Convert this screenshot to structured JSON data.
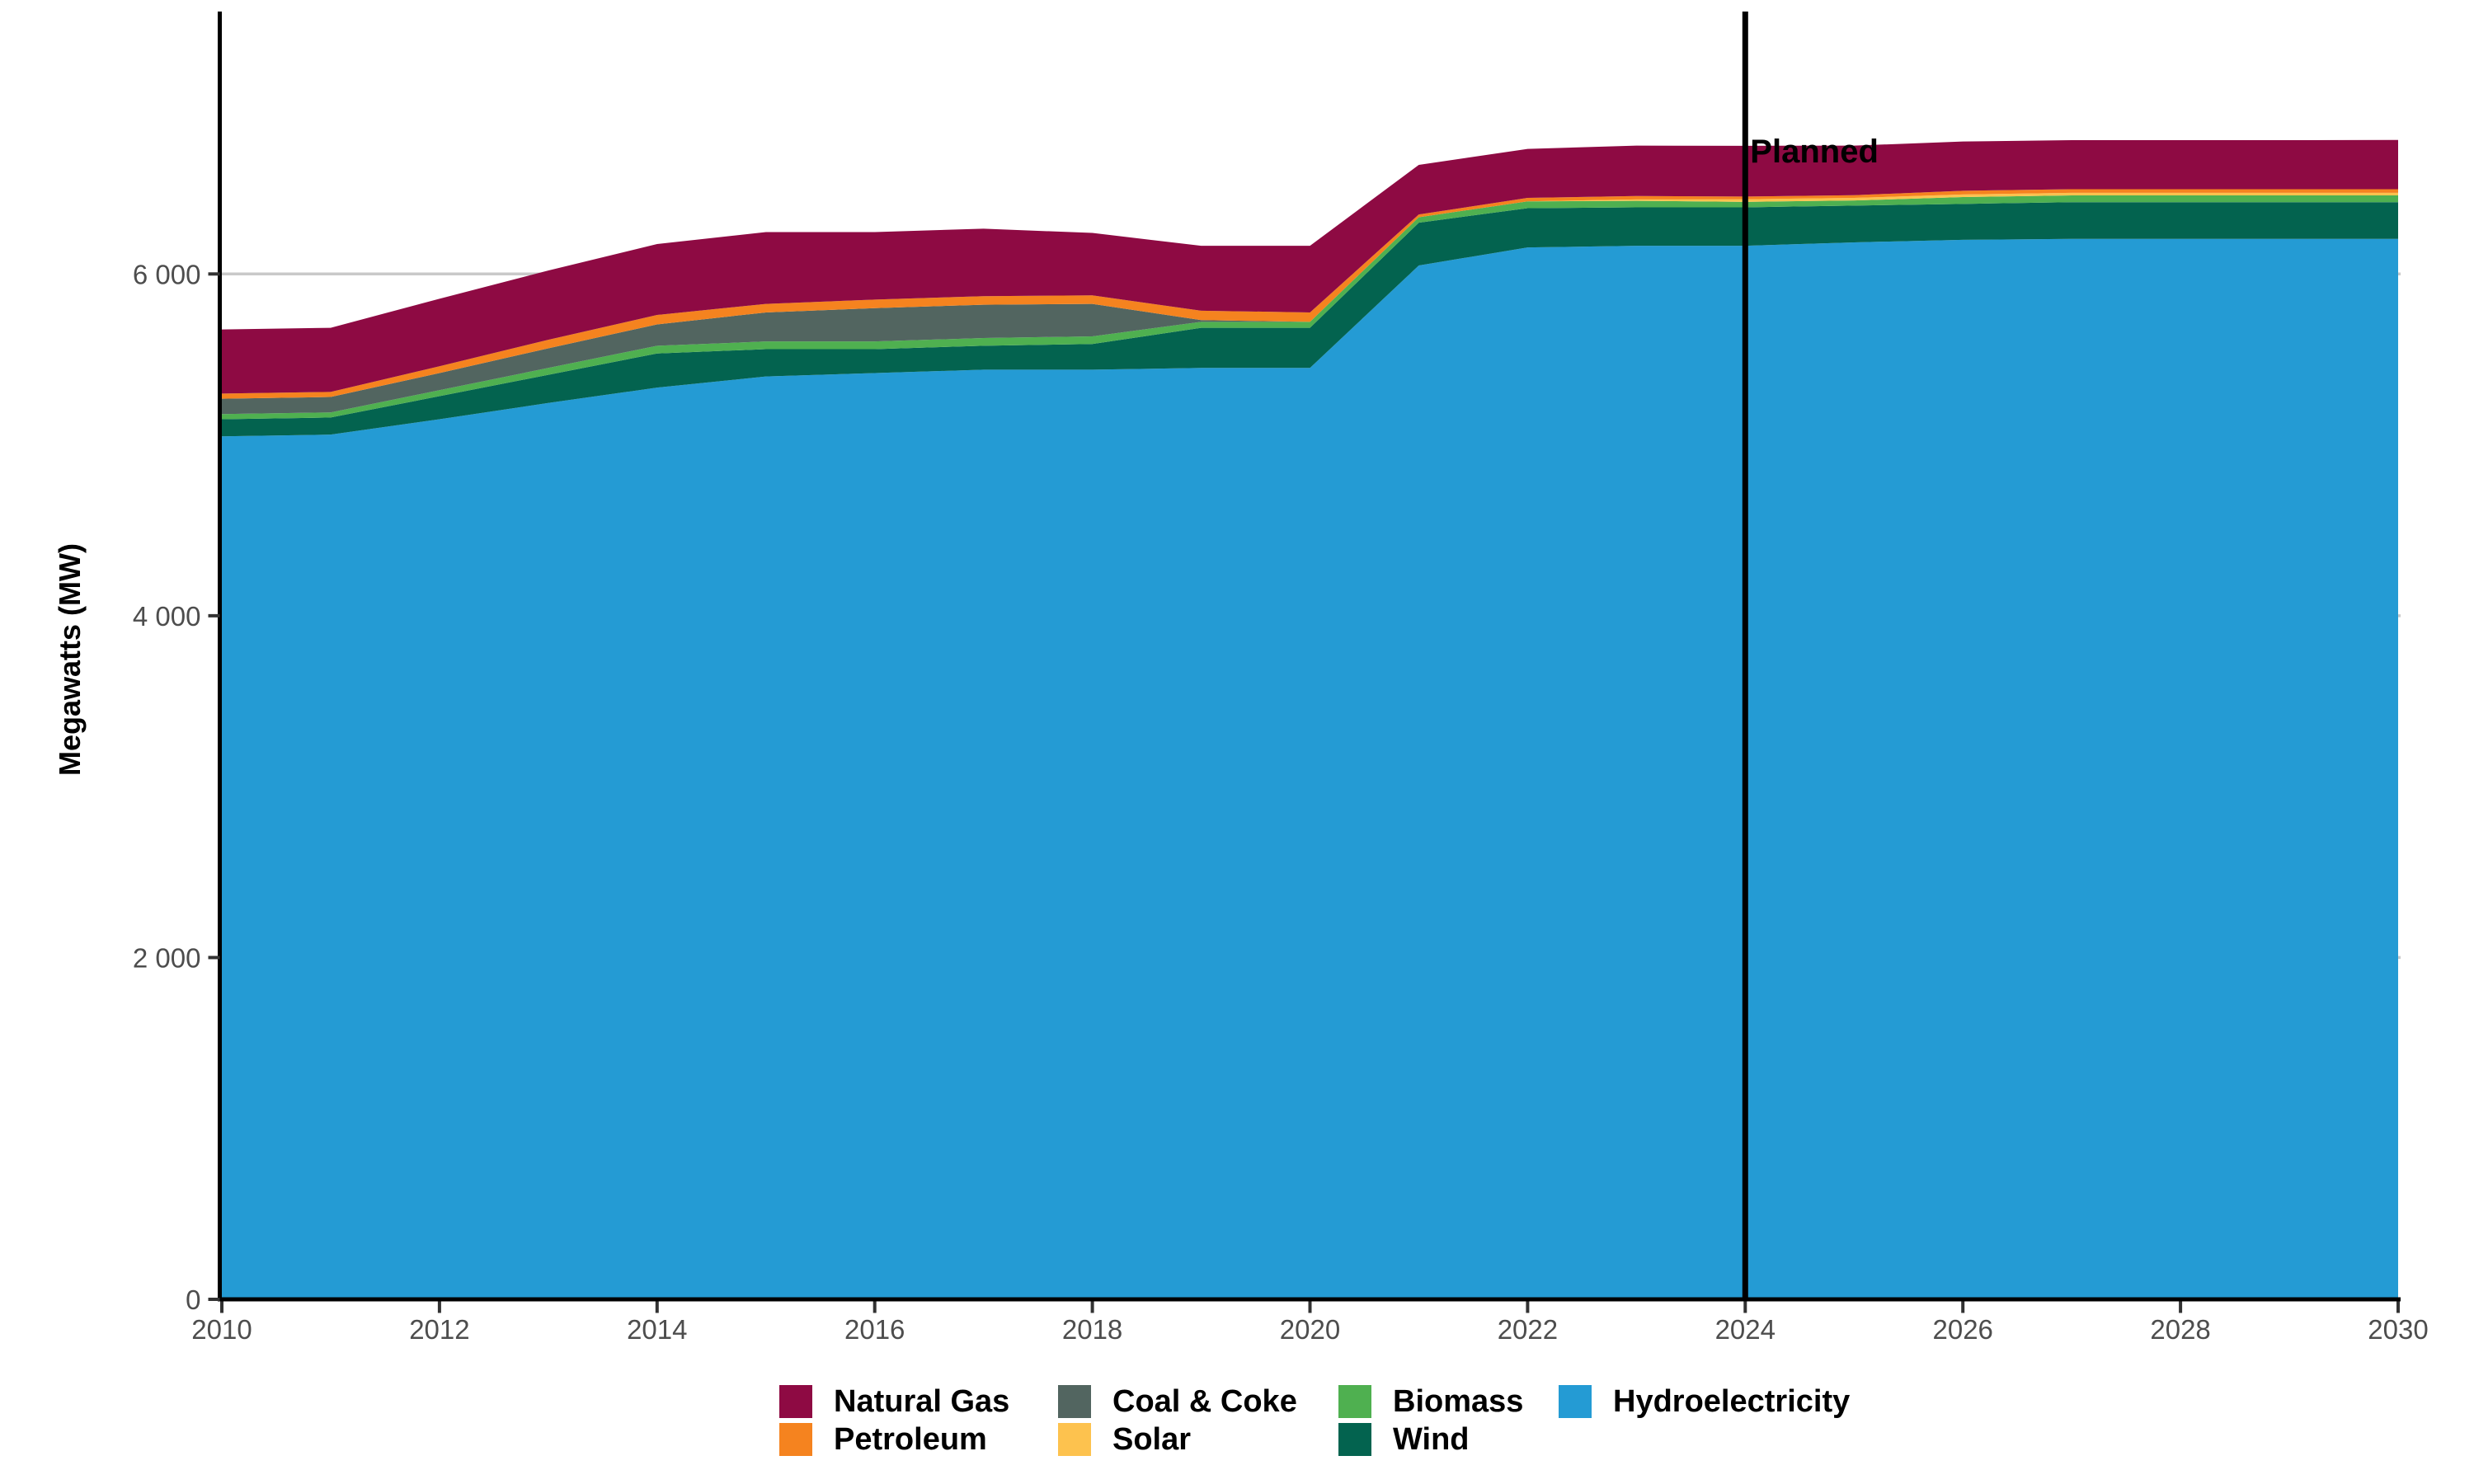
{
  "figure": {
    "y_axis_title": "Megawatts (MW)",
    "planned_label": "Planned",
    "background_color": "#ffffff",
    "axis_line_color": "#000000",
    "tick_color": "#333333",
    "tick_text_color": "#4d4d4d",
    "gridline_color": "#c9c9c9",
    "planned_line_color": "#000000"
  },
  "chart_data": {
    "type": "area",
    "stacked": true,
    "title": "",
    "xlabel": "",
    "ylabel": "Megawatts (MW)",
    "grid": "horizontal-only",
    "legend_position": "bottom",
    "xlim": [
      2010,
      2030
    ],
    "ylim": [
      0,
      7500
    ],
    "x": [
      2010,
      2011,
      2012,
      2013,
      2014,
      2015,
      2016,
      2017,
      2018,
      2019,
      2020,
      2021,
      2022,
      2023,
      2024,
      2025,
      2026,
      2027,
      2028,
      2029,
      2030
    ],
    "x_ticks": [
      2010,
      2012,
      2014,
      2016,
      2018,
      2020,
      2022,
      2024,
      2026,
      2028,
      2030
    ],
    "x_tick_labels": [
      "2010",
      "2012",
      "2014",
      "2016",
      "2018",
      "2020",
      "2022",
      "2024",
      "2026",
      "2028",
      "2030"
    ],
    "y_ticks": [
      {
        "value": 0,
        "label": "0"
      },
      {
        "value": 2000,
        "label": "2 000"
      },
      {
        "value": 4000,
        "label": "4 000"
      },
      {
        "value": 6000,
        "label": "6 000"
      }
    ],
    "annotation": {
      "label": "Planned",
      "x": 2024
    },
    "series": [
      {
        "name": "Hydroelectricity",
        "color": "#249bd4",
        "values": [
          5050,
          5060,
          5150,
          5245,
          5335,
          5400,
          5420,
          5440,
          5440,
          5450,
          5450,
          6050,
          6155,
          6165,
          6165,
          6185,
          6200,
          6205,
          6205,
          6205,
          6205
        ]
      },
      {
        "name": "Wind",
        "color": "#03634f",
        "values": [
          100,
          100,
          135,
          165,
          200,
          160,
          140,
          140,
          150,
          235,
          235,
          250,
          230,
          225,
          225,
          215,
          210,
          215,
          215,
          215,
          215
        ]
      },
      {
        "name": "Biomass",
        "color": "#4fb050",
        "values": [
          30,
          30,
          35,
          40,
          45,
          45,
          45,
          45,
          45,
          35,
          35,
          32,
          40,
          38,
          32,
          30,
          40,
          40,
          40,
          40,
          40
        ]
      },
      {
        "name": "Solar",
        "color": "#fdc24e",
        "values": [
          0,
          0,
          0,
          0,
          0,
          0,
          0,
          0,
          0,
          0,
          0,
          0,
          0,
          8,
          15,
          15,
          15,
          15,
          15,
          15,
          15
        ]
      },
      {
        "name": "Coal & Coke",
        "color": "#526560",
        "values": [
          90,
          90,
          100,
          115,
          125,
          170,
          195,
          195,
          190,
          10,
          0,
          0,
          0,
          0,
          0,
          0,
          0,
          0,
          0,
          0,
          0
        ]
      },
      {
        "name": "Petroleum",
        "color": "#f5831f",
        "values": [
          30,
          30,
          40,
          50,
          55,
          50,
          50,
          50,
          50,
          55,
          55,
          16,
          20,
          20,
          16,
          16,
          22,
          21,
          21,
          21,
          21
        ]
      },
      {
        "name": "Natural Gas",
        "color": "#8e0a43",
        "values": [
          375,
          375,
          395,
          405,
          415,
          420,
          395,
          395,
          365,
          380,
          390,
          290,
          287,
          295,
          297,
          290,
          288,
          287,
          287,
          287,
          288
        ]
      }
    ]
  },
  "legend": {
    "items": [
      {
        "label": "Natural Gas",
        "color": "#8e0a43"
      },
      {
        "label": "Petroleum",
        "color": "#f5831f"
      },
      {
        "label": "Coal & Coke",
        "color": "#526560"
      },
      {
        "label": "Solar",
        "color": "#fdc24e"
      },
      {
        "label": "Biomass",
        "color": "#4fb050"
      },
      {
        "label": "Wind",
        "color": "#03634f"
      },
      {
        "label": "Hydroelectricity",
        "color": "#249bd4"
      }
    ]
  }
}
